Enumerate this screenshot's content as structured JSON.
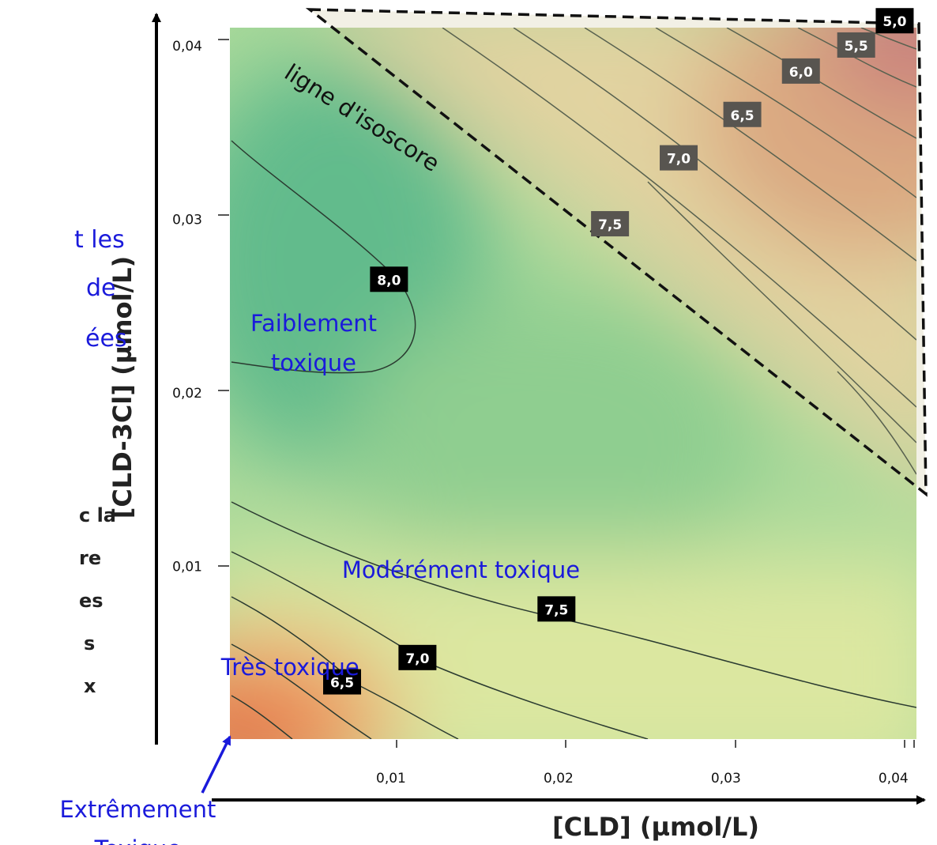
{
  "left_fragments": {
    "blue": [
      "t les",
      "de",
      "ées"
    ],
    "bold": [
      "c la",
      "re",
      "es",
      "s",
      "x"
    ]
  },
  "chart_data": {
    "type": "heatmap",
    "subtype": "contour",
    "xlabel": "[CLD] (µmol/L)",
    "ylabel": "[CLD-3Cl] (µmol/L)",
    "xlim": [
      0,
      0.041
    ],
    "ylim": [
      0,
      0.041
    ],
    "x_ticks": [
      "0,01",
      "0,02",
      "0,03",
      "0,04"
    ],
    "y_ticks": [
      "0,01",
      "0,02",
      "0,03",
      "0,04"
    ],
    "contour_labels": [
      {
        "label": "8,0",
        "x": 0.0095,
        "y": 0.0265,
        "style": "dark"
      },
      {
        "label": "7,5",
        "x": 0.0195,
        "y": 0.0075,
        "style": "dark"
      },
      {
        "label": "7,0",
        "x": 0.0112,
        "y": 0.0047,
        "style": "dark"
      },
      {
        "label": "6,5",
        "x": 0.0067,
        "y": 0.0033,
        "style": "dark"
      },
      {
        "label": "7,5",
        "x": 0.0227,
        "y": 0.0297,
        "style": "grey"
      },
      {
        "label": "7,0",
        "x": 0.0268,
        "y": 0.0335,
        "style": "grey"
      },
      {
        "label": "6,5",
        "x": 0.0306,
        "y": 0.036,
        "style": "grey"
      },
      {
        "label": "6,0",
        "x": 0.0341,
        "y": 0.0385,
        "style": "grey"
      },
      {
        "label": "5,5",
        "x": 0.0374,
        "y": 0.04,
        "style": "grey"
      },
      {
        "label": "5,0",
        "x": 0.0397,
        "y": 0.0414,
        "style": "dark"
      }
    ],
    "region_labels": [
      {
        "text": "Faiblement toxique",
        "x": 0.005,
        "y": 0.0235
      },
      {
        "text": "Modérément toxique",
        "x": 0.0138,
        "y": 0.0093
      },
      {
        "text": "Très toxique",
        "x": 0.0036,
        "y": 0.0037
      },
      {
        "text": "Extrêmement Toxique",
        "x": -0.0055,
        "y": -0.0045
      }
    ],
    "isoscore_line": {
      "label": "ligne d'isoscore",
      "from": [
        0.0045,
        0.0422
      ],
      "to": [
        0.041,
        0.0145
      ]
    }
  }
}
